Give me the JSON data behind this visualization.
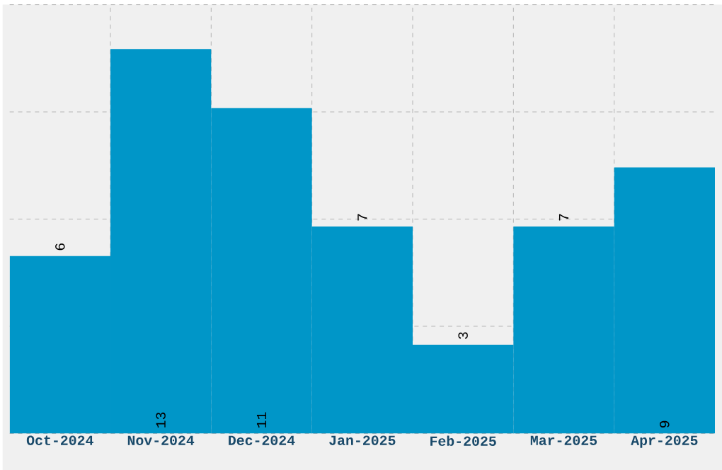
{
  "chart_data": {
    "type": "bar",
    "categories": [
      "Oct-2024",
      "Nov-2024",
      "Dec-2024",
      "Jan-2025",
      "Feb-2025",
      "Mar-2025",
      "Apr-2025"
    ],
    "values": [
      6,
      13,
      11,
      7,
      3,
      7,
      9
    ],
    "color": "#0096c8",
    "ylim": [
      0,
      14.5
    ],
    "yticks": [
      {
        "value": 0,
        "label": null
      },
      {
        "value": 3.625,
        "label": null
      },
      {
        "value": 7.25,
        "label": null
      },
      {
        "value": 10.875,
        "label": null
      },
      {
        "value": 14.5,
        "label": null
      }
    ],
    "data_labels": true,
    "grid": true,
    "tick_labels": "x"
  }
}
